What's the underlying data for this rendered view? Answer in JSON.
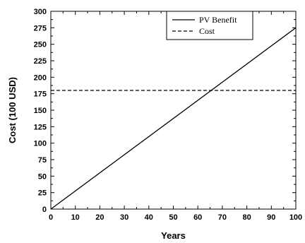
{
  "chart_data": {
    "type": "line",
    "title": "",
    "xlabel": "Years",
    "ylabel": "Cost (100 USD)",
    "xlim": [
      0,
      100
    ],
    "ylim": [
      0,
      300
    ],
    "x_ticks": [
      0,
      10,
      20,
      30,
      40,
      50,
      60,
      70,
      80,
      90,
      100
    ],
    "y_ticks": [
      0,
      25,
      50,
      75,
      100,
      125,
      150,
      175,
      200,
      225,
      250,
      275,
      300
    ],
    "grid": false,
    "legend_position": "top-right",
    "series": [
      {
        "name": "PV Benefit",
        "style": "solid",
        "color": "#000000",
        "x": [
          0,
          100
        ],
        "y": [
          0,
          275
        ]
      },
      {
        "name": "Cost",
        "style": "dashed",
        "color": "#000000",
        "x": [
          0,
          100
        ],
        "y": [
          180,
          180
        ]
      }
    ]
  }
}
